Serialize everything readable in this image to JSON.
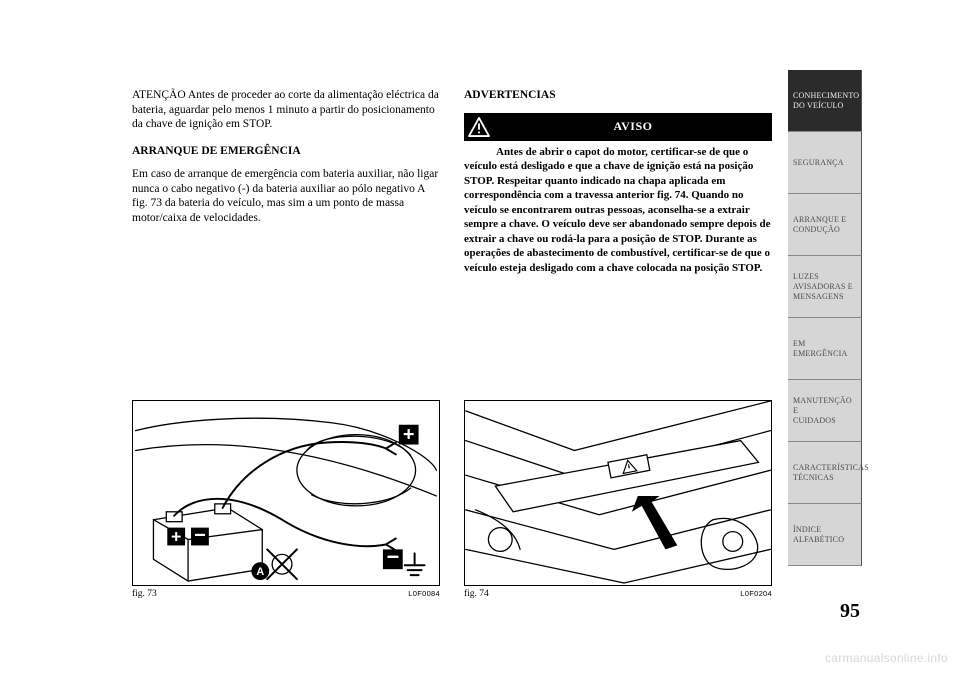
{
  "page_number": "95",
  "watermark": "carmanualsonline.info",
  "left_column": {
    "para1": "ATENÇÃO Antes de proceder ao corte da alimentação eléctrica da bateria, aguardar pelo menos 1 minuto a partir do posicionamento da chave de ignição em STOP.",
    "heading": "ARRANQUE DE EMERGÊNCIA",
    "para2": "Em caso de arranque de emergência com bateria auxiliar, não ligar nunca o cabo negativo (-) da bateria auxiliar ao pólo negativo A fig. 73 da bateria do veículo, mas sim a um ponto de massa motor/caixa de velocidades."
  },
  "right_column": {
    "section_title": "ADVERTENCIAS",
    "aviso_label": "AVISO",
    "aviso_body": "Antes de abrir o capot do motor, certificar-se de que o veículo está desligado e que a chave de ignição está na posição STOP. Respeitar quanto indicado na chapa aplicada em correspondência com a travessa anterior fig. 74. Quando no veículo se encontrarem outras pessoas, aconselha-se a extrair sempre a chave. O veículo deve ser abandonado sempre depois de extrair a chave ou rodá-la para a posição de STOP. Durante as operações de abastecimento de combustível, certificar-se de que o veículo esteja desligado com a chave colocada na posição STOP."
  },
  "figures": {
    "fig73": {
      "label": "fig. 73",
      "code": "L0F0084",
      "callout_A": "A"
    },
    "fig74": {
      "label": "fig. 74",
      "code": "L0F0204"
    }
  },
  "tabs": [
    {
      "label": "CONHECIMENTO DO VEÍCULO",
      "active": true
    },
    {
      "label": "SEGURANÇA",
      "active": false
    },
    {
      "label": "ARRANQUE E CONDUÇÃO",
      "active": false
    },
    {
      "label": "LUZES AVISADORAS E MENSAGENS",
      "active": false
    },
    {
      "label": "EM EMERGÊNCIA",
      "active": false
    },
    {
      "label": "MANUTENÇÃO E CUIDADOS",
      "active": false
    },
    {
      "label": "CARACTERÍSTICAS TÉCNICAS",
      "active": false
    },
    {
      "label": "ÍNDICE ALFABÉTICO",
      "active": false
    }
  ],
  "colors": {
    "tab_active_bg": "#2b2b2b",
    "tab_inactive_bg": "#d6d6d6",
    "tab_inactive_fg": "#4a4a4a",
    "watermark": "#d8d8d8"
  }
}
